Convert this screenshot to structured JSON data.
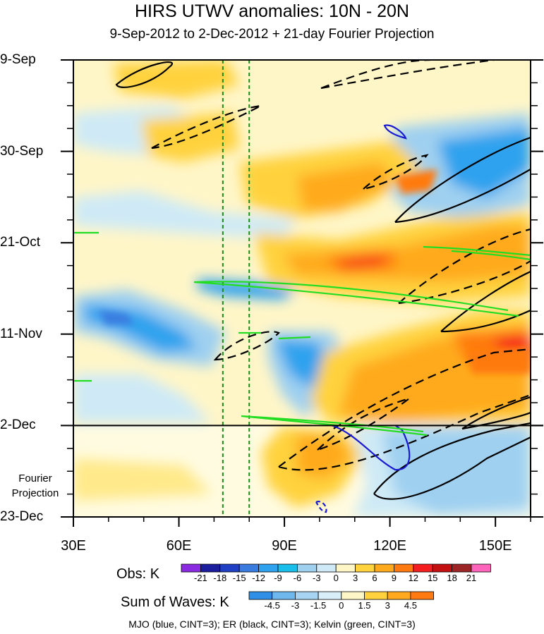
{
  "chart_data": {
    "type": "heatmap",
    "title": "HIRS UTWV anomalies: 10N - 20N",
    "subtitle": "9-Sep-2012 to 2-Dec-2012 + 21-day Fourier Projection",
    "x_axis": {
      "range": [
        30,
        160
      ],
      "ticks": [
        {
          "value": 30,
          "label": "30E"
        },
        {
          "value": 60,
          "label": "60E"
        },
        {
          "value": 90,
          "label": "90E"
        },
        {
          "value": 120,
          "label": "120E"
        },
        {
          "value": 150,
          "label": "150E"
        }
      ]
    },
    "y_axis": {
      "range_days": [
        0,
        105
      ],
      "ticks": [
        {
          "day": 0,
          "label": "9-Sep"
        },
        {
          "day": 21,
          "label": "30-Sep"
        },
        {
          "day": 42,
          "label": "21-Oct"
        },
        {
          "day": 63,
          "label": "11-Nov"
        },
        {
          "day": 84,
          "label": "2-Dec"
        },
        {
          "day": 105,
          "label": "23-Dec"
        }
      ],
      "projection_start_day": 84
    },
    "projection_label": [
      "Fourier",
      "Projection"
    ],
    "reference_longitudes": [
      72.5,
      80
    ],
    "obs_colorbar": {
      "title": "Obs: K",
      "levels": [
        -21,
        -18,
        -15,
        -12,
        -9,
        -6,
        -3,
        0,
        3,
        6,
        9,
        12,
        15,
        18,
        21
      ],
      "colors": [
        "#8a2be2",
        "#1c1c9e",
        "#1f3fc4",
        "#3a7be0",
        "#2ea2ee",
        "#19bfea",
        "#9fd0f0",
        "#cfeaf6",
        "#fff6c8",
        "#ffd23e",
        "#ffaa1e",
        "#ff7a10",
        "#f51d1d",
        "#c41010",
        "#9c2626",
        "#ff66bb"
      ]
    },
    "waves_colorbar": {
      "title": "Sum of Waves: K",
      "levels": [
        -4.5,
        -3,
        -1.5,
        0,
        1.5,
        3,
        4.5
      ],
      "colors": [
        "#2f8fe6",
        "#6fb8ee",
        "#a8d4f4",
        "#d8eef9",
        "#fff6c8",
        "#ffd23e",
        "#ffaa1e",
        "#ff7a10"
      ]
    },
    "contours": [
      {
        "wave": "MJO",
        "color": "#1a1ad0",
        "interval": 3
      },
      {
        "wave": "ER",
        "color": "#000000",
        "interval": 3
      },
      {
        "wave": "Kelvin",
        "color": "#22dd22",
        "interval": 3
      }
    ],
    "legend_note": "MJO (blue, CINT=3); ER (black, CINT=3); Kelvin (green, CINT=3)",
    "features": [
      {
        "kind": "positive",
        "lon": [
          95,
          160
        ],
        "day": [
          66,
          84
        ],
        "peak": 15
      },
      {
        "kind": "positive",
        "lon": [
          100,
          155
        ],
        "day": [
          40,
          50
        ],
        "peak": 15
      },
      {
        "kind": "negative",
        "lon": [
          30,
          65
        ],
        "day": [
          55,
          68
        ],
        "peak": -9
      },
      {
        "kind": "negative",
        "lon": [
          110,
          160
        ],
        "day": [
          20,
          40
        ],
        "peak": -9
      }
    ]
  }
}
